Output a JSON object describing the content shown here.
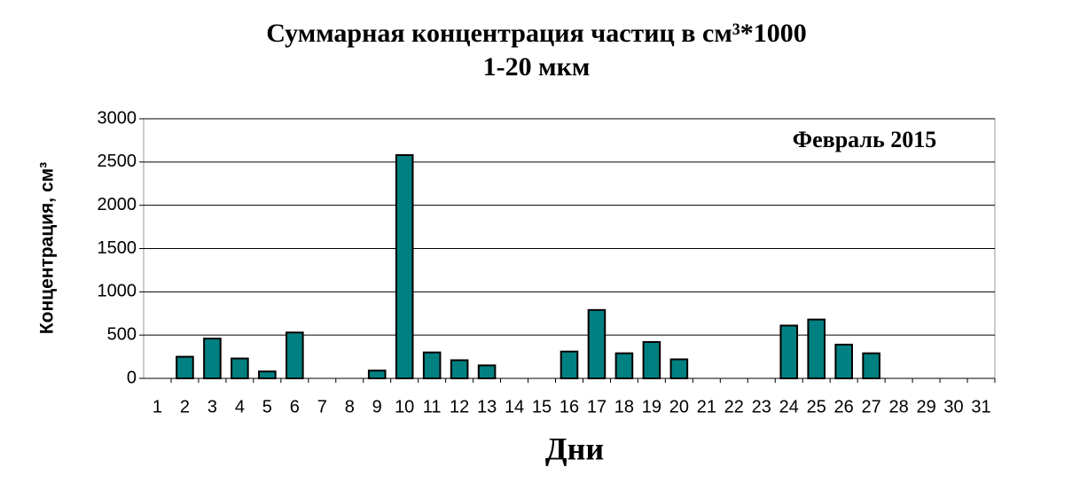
{
  "chart_data": {
    "type": "bar",
    "title": "Суммарная концентрация частиц в см³*1000",
    "subtitle": "1-20 мкм",
    "annotation": "Февраль 2015",
    "y_label": "Концентрация, см³",
    "x_label": "Дни",
    "categories": [
      "1",
      "2",
      "3",
      "4",
      "5",
      "6",
      "7",
      "8",
      "9",
      "10",
      "11",
      "12",
      "13",
      "14",
      "15",
      "16",
      "17",
      "18",
      "19",
      "20",
      "21",
      "22",
      "23",
      "24",
      "25",
      "26",
      "27",
      "28",
      "29",
      "30",
      "31"
    ],
    "values": [
      0,
      250,
      460,
      230,
      80,
      530,
      0,
      0,
      90,
      2580,
      300,
      210,
      150,
      0,
      0,
      310,
      790,
      290,
      420,
      220,
      0,
      0,
      0,
      610,
      680,
      390,
      290,
      0,
      0,
      0,
      0
    ],
    "color": "#008080",
    "ylim": [
      0,
      3000
    ],
    "yticks": [
      0,
      500,
      1000,
      1500,
      2000,
      2500,
      3000
    ],
    "grid": true
  }
}
